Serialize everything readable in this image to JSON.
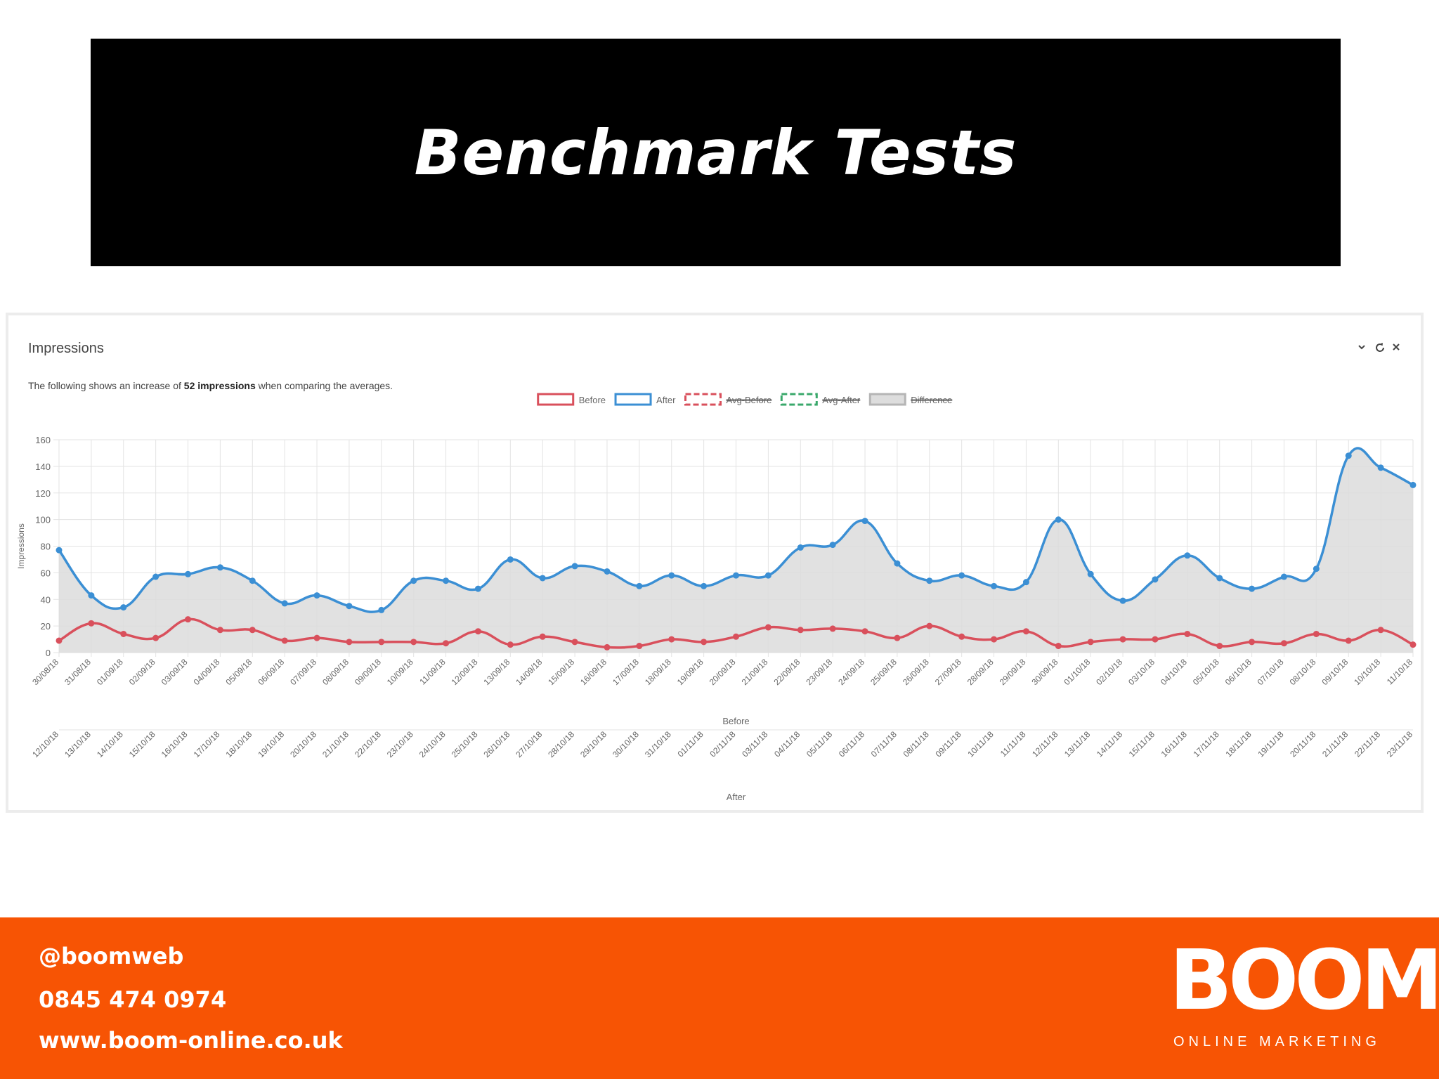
{
  "header": {
    "title": "Benchmark Tests"
  },
  "widget": {
    "title": "Impressions",
    "description": [
      "The following shows an increase of ",
      "52 impressions",
      " when comparing the averages."
    ]
  },
  "chart_data": {
    "type": "line",
    "y_label": "Impressions",
    "x_label": "Before",
    "x2_label": "After",
    "categories": [
      "30/08/18",
      "31/08/18",
      "01/09/18",
      "02/09/18",
      "03/09/18",
      "04/09/18",
      "05/09/18",
      "06/09/18",
      "07/09/18",
      "08/09/18",
      "09/09/18",
      "10/09/18",
      "11/09/18",
      "12/09/18",
      "13/09/18",
      "14/09/18",
      "15/09/18",
      "16/09/18",
      "17/09/18",
      "18/09/18",
      "19/09/18",
      "20/09/18",
      "21/09/18",
      "22/09/18",
      "23/09/18",
      "24/09/18",
      "25/09/18",
      "26/09/18",
      "27/09/18",
      "28/09/18",
      "29/09/18",
      "30/09/18",
      "01/10/18",
      "02/10/18",
      "03/10/18",
      "04/10/18",
      "05/10/18",
      "06/10/18",
      "07/10/18",
      "08/10/18",
      "09/10/18",
      "10/10/18",
      "11/10/18"
    ],
    "x2_categories": [
      "12/10/18",
      "13/10/18",
      "14/10/18",
      "15/10/18",
      "16/10/18",
      "17/10/18",
      "18/10/18",
      "19/10/18",
      "20/10/18",
      "21/10/18",
      "22/10/18",
      "23/10/18",
      "24/10/18",
      "25/10/18",
      "26/10/18",
      "27/10/18",
      "28/10/18",
      "29/10/18",
      "30/10/18",
      "31/10/18",
      "01/11/18",
      "02/11/18",
      "03/11/18",
      "04/11/18",
      "05/11/18",
      "06/11/18",
      "07/11/18",
      "08/11/18",
      "09/11/18",
      "10/11/18",
      "11/11/18",
      "12/11/18",
      "13/11/18",
      "14/11/18",
      "15/11/18",
      "16/11/18",
      "17/11/18",
      "18/11/18",
      "19/11/18",
      "20/11/18",
      "21/11/18",
      "22/11/18",
      "23/11/18"
    ],
    "series": [
      {
        "name": "Before",
        "color": "#d9505c",
        "values": [
          9,
          22,
          14,
          11,
          25,
          17,
          17,
          9,
          11,
          8,
          8,
          8,
          7,
          16,
          6,
          12,
          8,
          4,
          5,
          10,
          8,
          12,
          19,
          17,
          18,
          16,
          11,
          20,
          12,
          10,
          16,
          5,
          8,
          10,
          10,
          14,
          5,
          8,
          7,
          14,
          9,
          17,
          6
        ]
      },
      {
        "name": "After",
        "color": "#3b8fd4",
        "area_color": "#dcdcdc",
        "values": [
          77,
          43,
          34,
          57,
          59,
          64,
          54,
          37,
          43,
          35,
          32,
          54,
          54,
          48,
          70,
          56,
          65,
          61,
          50,
          58,
          50,
          58,
          58,
          79,
          81,
          99,
          67,
          54,
          58,
          50,
          53,
          100,
          59,
          39,
          55,
          73,
          56,
          48,
          57,
          63,
          148,
          139,
          126
        ]
      },
      {
        "name": "Avg-Before",
        "color": "#d9505c",
        "dashed": true,
        "hidden": true
      },
      {
        "name": "Avg-After",
        "color": "#3aa86b",
        "dashed": true,
        "hidden": true
      },
      {
        "name": "Difference",
        "color": "#b5b5b5",
        "hidden": true
      }
    ],
    "ylim": [
      0,
      160
    ],
    "yticks": [
      0,
      20,
      40,
      60,
      80,
      100,
      120,
      140,
      160
    ],
    "grid": true,
    "legend": "top",
    "smooth": true
  },
  "footer": {
    "contacts": [
      "@boomweb",
      "0845 474 0974",
      "www.boom-online.co.uk"
    ],
    "logo": "BOOM",
    "tagline": "ONLINE MARKETING"
  }
}
